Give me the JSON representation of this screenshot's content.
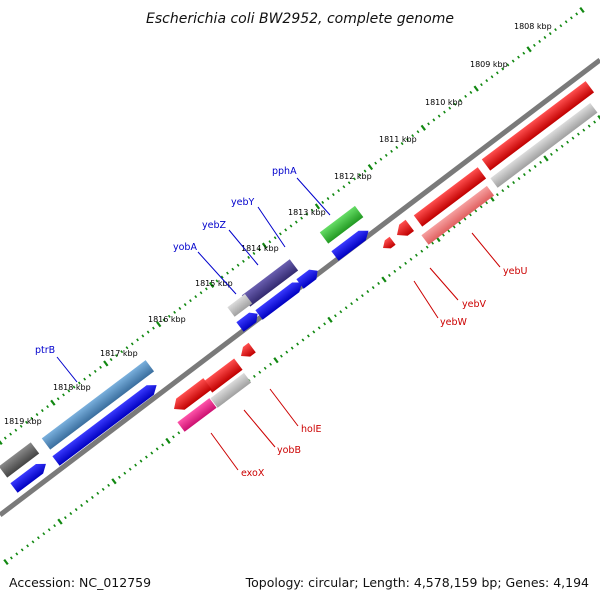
{
  "title": "Escherichia coli BW2952, complete genome",
  "ticks": [
    "1808 kbp",
    "1809 kbp",
    "1810 kbp",
    "1811 kbp",
    "1812 kbp",
    "1813 kbp",
    "1814 kbp",
    "1815 kbp",
    "1816 kbp",
    "1817 kbp",
    "1818 kbp",
    "1819 kbp"
  ],
  "genes_left": [
    "pphA",
    "yebY",
    "yebZ",
    "yobA",
    "ptrB"
  ],
  "genes_right": [
    "yebU",
    "yebV",
    "yebW",
    "holE",
    "yobB",
    "exoX"
  ],
  "colors": {
    "backbone": "#7a7a7a",
    "tick_dots": "#118811",
    "forward_cds": "#0000ee",
    "reverse_cds": "#ee0000",
    "gene_grey": "#bdbdbd",
    "gene_lightred": "#f08080",
    "gene_green": "#33bb33",
    "gene_purple": "#4b3f8f",
    "gene_steelblue": "#4f8fc0",
    "gene_darkgrey": "#606060",
    "gene_pink": "#ee2288",
    "label_left": "#0000cc",
    "label_right": "#cc0000"
  },
  "footer": {
    "accession": "Accession: NC_012759",
    "summary": "Topology: circular; Length: 4,578,159 bp; Genes: 4,194"
  }
}
